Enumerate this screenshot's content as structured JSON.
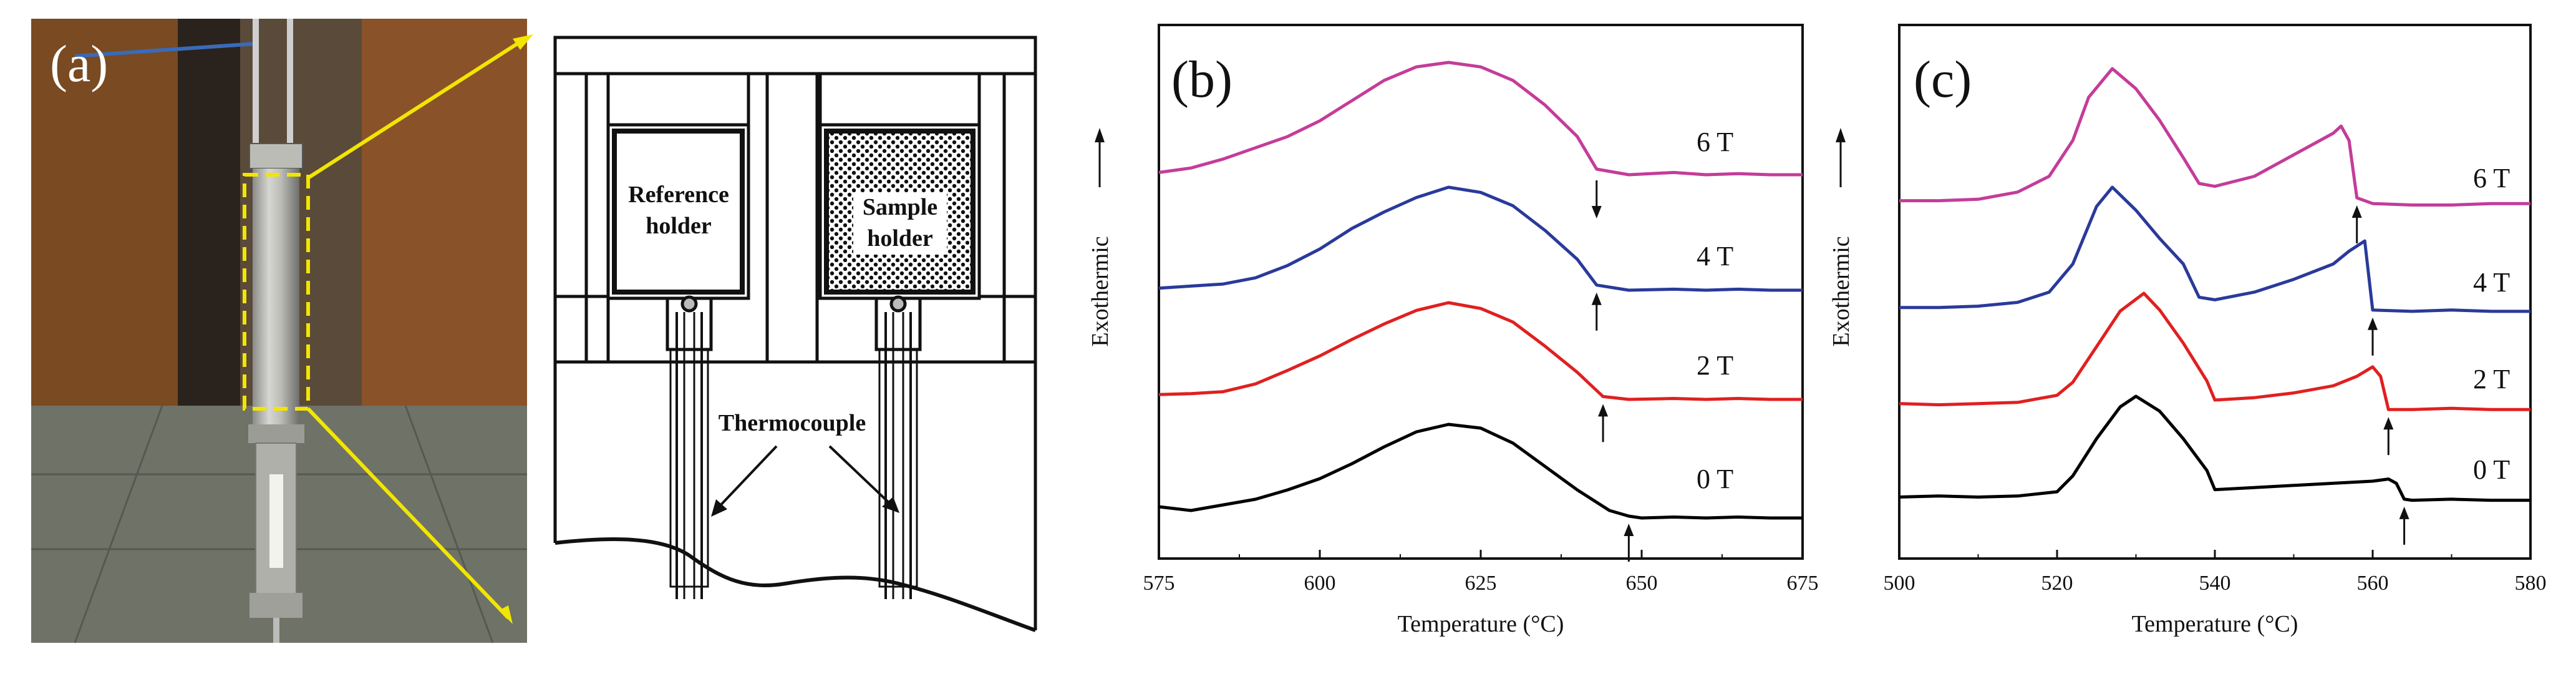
{
  "panels": {
    "a": {
      "label": "(a)"
    },
    "diagram": {
      "reference_label_1": "Reference",
      "reference_label_2": "holder",
      "sample_label_1": "Sample",
      "sample_label_2": "holder",
      "thermocouple_label": "Thermocouple"
    }
  },
  "colors": {
    "0 T": "#000000",
    "2 T": "#e02020",
    "4 T": "#2a3a9a",
    "6 T": "#c43c9a",
    "callout": "#f2e600"
  },
  "chart_data": [
    {
      "type": "line",
      "panel_label": "(b)",
      "xlabel": "Temperature (°C)",
      "ylabel": "Exothermic",
      "xlim": [
        575,
        675
      ],
      "xticks": [
        575,
        600,
        625,
        650,
        675
      ],
      "y_ticks_shown": false,
      "series": [
        {
          "name": "0 T",
          "color": "#000000",
          "offset": 3.0,
          "arrow_x": 648,
          "arrow_dir": "up",
          "x": [
            575,
            580,
            585,
            590,
            595,
            600,
            605,
            610,
            615,
            620,
            625,
            630,
            635,
            640,
            645,
            648,
            650,
            655,
            660,
            665,
            670,
            675
          ],
          "y": [
            0.12,
            0.08,
            0.14,
            0.2,
            0.3,
            0.42,
            0.58,
            0.76,
            0.92,
            1.0,
            0.96,
            0.8,
            0.55,
            0.3,
            0.08,
            0.02,
            0.0,
            0.01,
            0.0,
            0.01,
            0.0,
            0.0
          ]
        },
        {
          "name": "2 T",
          "color": "#e02020",
          "offset": 2.0,
          "arrow_x": 644,
          "arrow_dir": "up",
          "x": [
            575,
            580,
            585,
            590,
            595,
            600,
            605,
            610,
            615,
            620,
            625,
            630,
            635,
            640,
            644,
            648,
            655,
            660,
            665,
            670,
            675
          ],
          "y": [
            0.05,
            0.06,
            0.08,
            0.16,
            0.3,
            0.45,
            0.62,
            0.78,
            0.92,
            1.0,
            0.94,
            0.8,
            0.55,
            0.28,
            0.03,
            0.0,
            0.01,
            0.0,
            0.01,
            0.0,
            0.0
          ]
        },
        {
          "name": "4 T",
          "color": "#2a3a9a",
          "offset": 1.0,
          "arrow_x": 643,
          "arrow_dir": "up",
          "x": [
            575,
            580,
            585,
            590,
            595,
            600,
            605,
            610,
            615,
            620,
            625,
            630,
            635,
            640,
            643,
            648,
            655,
            660,
            665,
            670,
            675
          ],
          "y": [
            0.02,
            0.04,
            0.06,
            0.12,
            0.24,
            0.4,
            0.6,
            0.76,
            0.9,
            1.0,
            0.95,
            0.82,
            0.58,
            0.3,
            0.05,
            0.0,
            0.01,
            0.0,
            0.01,
            0.0,
            0.0
          ]
        },
        {
          "name": "6 T",
          "color": "#c43c9a",
          "offset": 0.0,
          "arrow_x": 643,
          "arrow_dir": "down",
          "x": [
            575,
            580,
            585,
            590,
            595,
            600,
            605,
            610,
            615,
            620,
            625,
            630,
            635,
            640,
            643,
            648,
            655,
            660,
            665,
            670,
            675
          ],
          "y": [
            0.02,
            0.06,
            0.14,
            0.24,
            0.34,
            0.48,
            0.66,
            0.84,
            0.96,
            1.0,
            0.96,
            0.84,
            0.62,
            0.34,
            0.05,
            0.0,
            0.02,
            0.0,
            0.01,
            0.0,
            0.0
          ]
        }
      ]
    },
    {
      "type": "line",
      "panel_label": "(c)",
      "xlabel": "Temperature (°C)",
      "ylabel": "Exothermic",
      "xlim": [
        500,
        580
      ],
      "xticks": [
        500,
        520,
        540,
        560,
        580
      ],
      "y_ticks_shown": false,
      "series": [
        {
          "name": "0 T",
          "color": "#000000",
          "offset": 3.0,
          "arrow_x": 564,
          "arrow_dir": "up",
          "x": [
            500,
            505,
            510,
            515,
            520,
            522,
            525,
            528,
            530,
            533,
            536,
            539,
            540,
            545,
            550,
            555,
            560,
            562,
            563,
            564,
            565,
            570,
            575,
            580
          ],
          "y": [
            0.05,
            0.06,
            0.05,
            0.06,
            0.1,
            0.25,
            0.6,
            0.9,
            1.0,
            0.86,
            0.6,
            0.3,
            0.12,
            0.14,
            0.16,
            0.18,
            0.2,
            0.22,
            0.18,
            0.03,
            0.02,
            0.03,
            0.02,
            0.02
          ]
        },
        {
          "name": "2 T",
          "color": "#e02020",
          "offset": 2.0,
          "arrow_x": 562,
          "arrow_dir": "up",
          "x": [
            500,
            505,
            510,
            515,
            520,
            522,
            525,
            528,
            531,
            533,
            536,
            539,
            540,
            545,
            550,
            555,
            558,
            560,
            561,
            562,
            565,
            570,
            575,
            580
          ],
          "y": [
            0.07,
            0.06,
            0.07,
            0.08,
            0.14,
            0.25,
            0.55,
            0.85,
            1.0,
            0.86,
            0.58,
            0.26,
            0.1,
            0.12,
            0.16,
            0.22,
            0.3,
            0.38,
            0.3,
            0.02,
            0.02,
            0.03,
            0.02,
            0.02
          ]
        },
        {
          "name": "4 T",
          "color": "#2a3a9a",
          "offset": 1.0,
          "arrow_x": 560,
          "arrow_dir": "up",
          "x": [
            500,
            505,
            510,
            515,
            519,
            522,
            525,
            527,
            530,
            533,
            536,
            538,
            540,
            545,
            550,
            555,
            557,
            559,
            560,
            565,
            570,
            575,
            580
          ],
          "y": [
            0.06,
            0.06,
            0.07,
            0.1,
            0.18,
            0.4,
            0.85,
            1.0,
            0.82,
            0.6,
            0.4,
            0.14,
            0.12,
            0.18,
            0.28,
            0.4,
            0.5,
            0.58,
            0.04,
            0.03,
            0.04,
            0.03,
            0.03
          ]
        },
        {
          "name": "6 T",
          "color": "#c43c9a",
          "offset": 0.0,
          "arrow_x": 558,
          "arrow_dir": "up",
          "x": [
            500,
            505,
            510,
            515,
            519,
            522,
            524,
            527,
            530,
            533,
            536,
            538,
            540,
            545,
            550,
            555,
            556,
            557,
            558,
            560,
            565,
            570,
            575,
            580
          ],
          "y": [
            0.08,
            0.08,
            0.09,
            0.14,
            0.25,
            0.5,
            0.8,
            1.0,
            0.86,
            0.64,
            0.38,
            0.2,
            0.18,
            0.25,
            0.4,
            0.55,
            0.6,
            0.5,
            0.1,
            0.06,
            0.05,
            0.05,
            0.06,
            0.06
          ]
        }
      ]
    }
  ]
}
